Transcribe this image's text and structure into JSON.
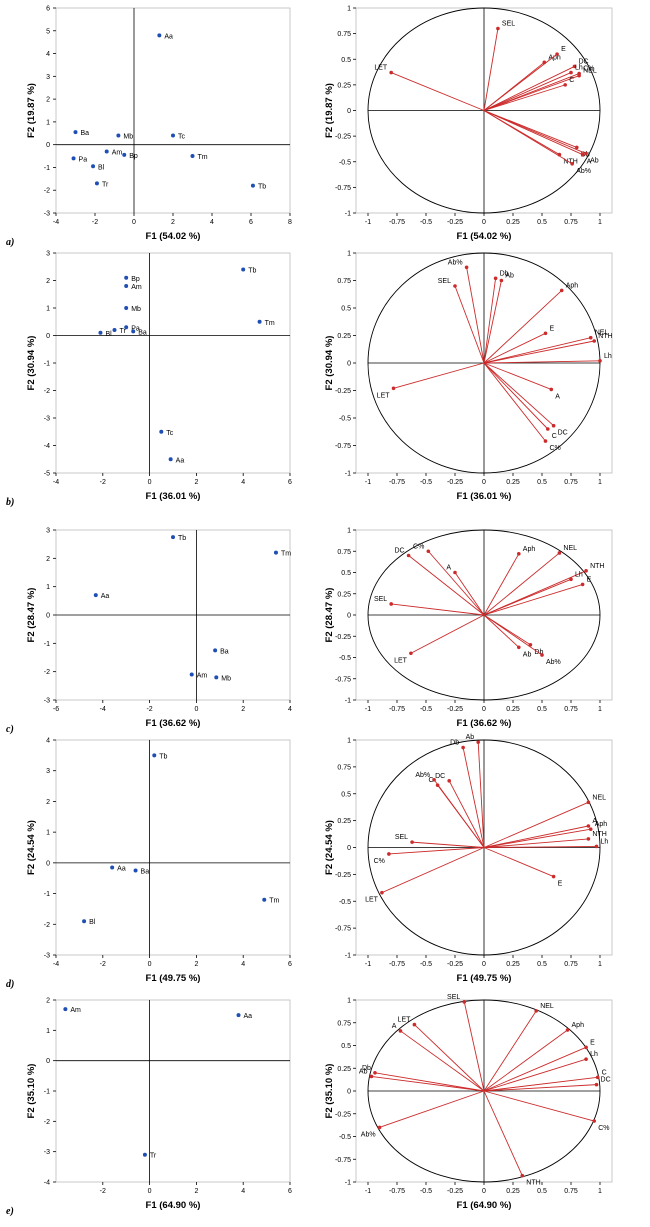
{
  "figure": {
    "rows": [
      {
        "label": "a)",
        "scores": {
          "type": "scatter",
          "title": "",
          "xlabel": "F1 (54.02 %)",
          "ylabel": "F2 (19.87 %)",
          "xlim": [
            -4,
            8
          ],
          "ylim": [
            -3,
            6
          ],
          "xticks": [
            -4,
            -2,
            0,
            2,
            4,
            6,
            8
          ],
          "yticks": [
            -3,
            -2,
            -1,
            0,
            1,
            2,
            3,
            4,
            5,
            6
          ],
          "point_color": "#1f4fb4",
          "points": [
            {
              "label": "Aa",
              "x": 1.3,
              "y": 4.8
            },
            {
              "label": "Ba",
              "x": -3.0,
              "y": 0.55
            },
            {
              "label": "Mb",
              "x": -0.8,
              "y": 0.4
            },
            {
              "label": "Tc",
              "x": 2.0,
              "y": 0.4
            },
            {
              "label": "Am",
              "x": -1.4,
              "y": -0.3
            },
            {
              "label": "Bp",
              "x": -0.5,
              "y": -0.45
            },
            {
              "label": "Pa",
              "x": -3.1,
              "y": -0.6
            },
            {
              "label": "Bl",
              "x": -2.1,
              "y": -0.95
            },
            {
              "label": "Tr",
              "x": -1.9,
              "y": -1.7
            },
            {
              "label": "Tm",
              "x": 3.0,
              "y": -0.5
            },
            {
              "label": "Tb",
              "x": 6.1,
              "y": -1.8
            }
          ]
        },
        "loadings": {
          "type": "scatter",
          "title": "",
          "xlabel": "F1 (54.02 %)",
          "ylabel": "F2 (19.87 %)",
          "xlim": [
            -1,
            1
          ],
          "ylim": [
            -1,
            1
          ],
          "xticks": [
            -1,
            -0.75,
            -0.5,
            -0.25,
            0,
            0.25,
            0.5,
            0.75,
            1
          ],
          "yticks": [
            -1,
            -0.75,
            -0.5,
            -0.25,
            0,
            0.25,
            0.5,
            0.75,
            1
          ],
          "vector_color": "#cc2b2b",
          "vectors": [
            {
              "label": "SEL",
              "x": 0.12,
              "y": 0.8
            },
            {
              "label": "LET",
              "x": -0.8,
              "y": 0.37
            },
            {
              "label": "Aph",
              "x": 0.52,
              "y": 0.47
            },
            {
              "label": "E",
              "x": 0.63,
              "y": 0.55
            },
            {
              "label": "DC",
              "x": 0.78,
              "y": 0.43
            },
            {
              "label": "Lh",
              "x": 0.75,
              "y": 0.37
            },
            {
              "label": "C%",
              "x": 0.82,
              "y": 0.36
            },
            {
              "label": "NEL",
              "x": 0.82,
              "y": 0.34
            },
            {
              "label": "C",
              "x": 0.7,
              "y": 0.25
            },
            {
              "label": "Db",
              "x": 0.8,
              "y": -0.36
            },
            {
              "label": "A",
              "x": 0.85,
              "y": -0.43
            },
            {
              "label": "Ab",
              "x": 0.88,
              "y": -0.42
            },
            {
              "label": "NTH",
              "x": 0.65,
              "y": -0.43
            },
            {
              "label": "Ab%",
              "x": 0.76,
              "y": -0.52
            }
          ]
        }
      },
      {
        "label": "b)",
        "scores": {
          "type": "scatter",
          "title": "",
          "xlabel": "F1 (36.01 %)",
          "ylabel": "F2 (30.94 %)",
          "xlim": [
            -4,
            6
          ],
          "ylim": [
            -5,
            3
          ],
          "xticks": [
            -4,
            -2,
            0,
            2,
            4,
            6
          ],
          "yticks": [
            -5,
            -4,
            -3,
            -2,
            -1,
            0,
            1,
            2,
            3
          ],
          "point_color": "#1f4fb4",
          "points": [
            {
              "label": "Tb",
              "x": 4.0,
              "y": 2.4
            },
            {
              "label": "Bp",
              "x": -1.0,
              "y": 2.1
            },
            {
              "label": "Am",
              "x": -1.0,
              "y": 1.8
            },
            {
              "label": "Mb",
              "x": -1.0,
              "y": 1.0
            },
            {
              "label": "Tm",
              "x": 4.7,
              "y": 0.5
            },
            {
              "label": "Bl",
              "x": -2.1,
              "y": 0.1
            },
            {
              "label": "Pa",
              "x": -1.0,
              "y": 0.3
            },
            {
              "label": "Ba",
              "x": -0.7,
              "y": 0.15
            },
            {
              "label": "Tr",
              "x": -1.5,
              "y": 0.2
            },
            {
              "label": "Tc",
              "x": 0.5,
              "y": -3.5
            },
            {
              "label": "Aa",
              "x": 0.9,
              "y": -4.5
            }
          ]
        },
        "loadings": {
          "type": "scatter",
          "title": "",
          "xlabel": "F1 (36.01 %)",
          "ylabel": "F2 (30.94 %)",
          "xlim": [
            -1,
            1
          ],
          "ylim": [
            -1,
            1
          ],
          "xticks": [
            -1,
            -0.75,
            -0.5,
            -0.25,
            0,
            0.25,
            0.5,
            0.75,
            1
          ],
          "yticks": [
            -1,
            -0.75,
            -0.5,
            -0.25,
            0,
            0.25,
            0.5,
            0.75,
            1
          ],
          "vector_color": "#cc2b2b",
          "vectors": [
            {
              "label": "Ab%",
              "x": -0.15,
              "y": 0.87
            },
            {
              "label": "Db",
              "x": 0.1,
              "y": 0.77
            },
            {
              "label": "Ab",
              "x": 0.15,
              "y": 0.75
            },
            {
              "label": "SEL",
              "x": -0.25,
              "y": 0.7
            },
            {
              "label": "Aph",
              "x": 0.67,
              "y": 0.66
            },
            {
              "label": "NEL",
              "x": 0.92,
              "y": 0.23
            },
            {
              "label": "NTH",
              "x": 0.95,
              "y": 0.2
            },
            {
              "label": "E",
              "x": 0.53,
              "y": 0.27
            },
            {
              "label": "Lh",
              "x": 1.0,
              "y": 0.02
            },
            {
              "label": "LET",
              "x": -0.78,
              "y": -0.23
            },
            {
              "label": "A",
              "x": 0.58,
              "y": -0.24
            },
            {
              "label": "DC",
              "x": 0.6,
              "y": -0.57
            },
            {
              "label": "C",
              "x": 0.55,
              "y": -0.6
            },
            {
              "label": "C%",
              "x": 0.53,
              "y": -0.71
            }
          ]
        }
      },
      {
        "label": "c)",
        "scores": {
          "type": "scatter",
          "title": "",
          "xlabel": "F1 (36.62 %)",
          "ylabel": "F2 (28.47 %)",
          "xlim": [
            -6,
            4
          ],
          "ylim": [
            -3,
            3
          ],
          "xticks": [
            -6,
            -4,
            -2,
            0,
            2,
            4
          ],
          "yticks": [
            -3,
            -2,
            -1,
            0,
            1,
            2,
            3
          ],
          "point_color": "#1f4fb4",
          "points": [
            {
              "label": "Tb",
              "x": -1.0,
              "y": 2.75
            },
            {
              "label": "Tm",
              "x": 3.4,
              "y": 2.2
            },
            {
              "label": "Aa",
              "x": -4.3,
              "y": 0.7
            },
            {
              "label": "Ba",
              "x": 0.8,
              "y": -1.25
            },
            {
              "label": "Am",
              "x": -0.2,
              "y": -2.1
            },
            {
              "label": "Mb",
              "x": 0.85,
              "y": -2.2
            }
          ]
        },
        "loadings": {
          "type": "scatter",
          "title": "",
          "xlabel": "F1 (36.62 %)",
          "ylabel": "F2 (28.47 %)",
          "xlim": [
            -1,
            1
          ],
          "ylim": [
            -1,
            1
          ],
          "xticks": [
            -1,
            -0.75,
            -0.5,
            -0.25,
            0,
            0.25,
            0.5,
            0.75,
            1
          ],
          "yticks": [
            -1,
            -0.75,
            -0.5,
            -0.25,
            0,
            0.25,
            0.5,
            0.75,
            1
          ],
          "vector_color": "#cc2b2b",
          "vectors": [
            {
              "label": "DC",
              "x": -0.65,
              "y": 0.7
            },
            {
              "label": "C%",
              "x": -0.48,
              "y": 0.75
            },
            {
              "label": "A",
              "x": -0.25,
              "y": 0.5
            },
            {
              "label": "Aph",
              "x": 0.3,
              "y": 0.72
            },
            {
              "label": "NEL",
              "x": 0.65,
              "y": 0.73
            },
            {
              "label": "NTH",
              "x": 0.88,
              "y": 0.52
            },
            {
              "label": "Lh",
              "x": 0.75,
              "y": 0.42
            },
            {
              "label": "E",
              "x": 0.85,
              "y": 0.36
            },
            {
              "label": "SEL",
              "x": -0.8,
              "y": 0.13
            },
            {
              "label": "LET",
              "x": -0.63,
              "y": -0.45
            },
            {
              "label": "Ab",
              "x": 0.3,
              "y": -0.38
            },
            {
              "label": "Db",
              "x": 0.4,
              "y": -0.35
            },
            {
              "label": "Ab%",
              "x": 0.5,
              "y": -0.47
            }
          ]
        }
      },
      {
        "label": "d)",
        "scores": {
          "type": "scatter",
          "title": "",
          "xlabel": "F1 (49.75 %)",
          "ylabel": "F2 (24.54 %)",
          "xlim": [
            -4,
            6
          ],
          "ylim": [
            -3,
            4
          ],
          "xticks": [
            -4,
            -2,
            0,
            2,
            4,
            6
          ],
          "yticks": [
            -3,
            -2,
            -1,
            0,
            1,
            2,
            3,
            4
          ],
          "point_color": "#1f4fb4",
          "points": [
            {
              "label": "Tb",
              "x": 0.2,
              "y": 3.5
            },
            {
              "label": "Aa",
              "x": -1.6,
              "y": -0.15
            },
            {
              "label": "Ba",
              "x": -0.6,
              "y": -0.25
            },
            {
              "label": "Tm",
              "x": 4.9,
              "y": -1.2
            },
            {
              "label": "Bl",
              "x": -2.8,
              "y": -1.9
            }
          ]
        },
        "loadings": {
          "type": "scatter",
          "title": "",
          "xlabel": "F1 (49.75 %)",
          "ylabel": "F2 (24.54 %)",
          "xlim": [
            -1,
            1
          ],
          "ylim": [
            -1,
            1
          ],
          "xticks": [
            -1,
            -0.75,
            -0.5,
            -0.25,
            0,
            0.25,
            0.5,
            0.75,
            1
          ],
          "yticks": [
            -1,
            -0.75,
            -0.5,
            -0.25,
            0,
            0.25,
            0.5,
            0.75,
            1
          ],
          "vector_color": "#cc2b2b",
          "vectors": [
            {
              "label": "Ab",
              "x": -0.05,
              "y": 0.98
            },
            {
              "label": "Db",
              "x": -0.18,
              "y": 0.93
            },
            {
              "label": "Ab%",
              "x": -0.43,
              "y": 0.63
            },
            {
              "label": "DC",
              "x": -0.3,
              "y": 0.62
            },
            {
              "label": "C",
              "x": -0.4,
              "y": 0.58
            },
            {
              "label": "NEL",
              "x": 0.9,
              "y": 0.42
            },
            {
              "label": "A",
              "x": 0.9,
              "y": 0.2
            },
            {
              "label": "Aph",
              "x": 0.92,
              "y": 0.17
            },
            {
              "label": "NTH",
              "x": 0.9,
              "y": 0.08
            },
            {
              "label": "Lh",
              "x": 0.97,
              "y": 0.01
            },
            {
              "label": "SEL",
              "x": -0.62,
              "y": 0.05
            },
            {
              "label": "C%",
              "x": -0.82,
              "y": -0.06
            },
            {
              "label": "LET",
              "x": -0.88,
              "y": -0.42
            },
            {
              "label": "E",
              "x": 0.6,
              "y": -0.27
            }
          ]
        }
      },
      {
        "label": "e)",
        "scores": {
          "type": "scatter",
          "title": "",
          "xlabel": "F1 (64.90 %)",
          "ylabel": "F2 (35.10 %)",
          "xlim": [
            -4,
            6
          ],
          "ylim": [
            -4,
            2
          ],
          "xticks": [
            -2,
            0,
            2,
            4,
            6
          ],
          "yticks": [
            -4,
            -3,
            -2,
            -1,
            0,
            1,
            2
          ],
          "point_color": "#1f4fb4",
          "points": [
            {
              "label": "Am",
              "x": -3.6,
              "y": 1.7
            },
            {
              "label": "Aa",
              "x": 3.8,
              "y": 1.5
            },
            {
              "label": "Tr",
              "x": -0.2,
              "y": -3.1
            }
          ]
        },
        "loadings": {
          "type": "scatter",
          "title": "",
          "xlabel": "F1 (64.90 %)",
          "ylabel": "F2 (35.10 %)",
          "xlim": [
            -1,
            1
          ],
          "ylim": [
            -1,
            1
          ],
          "xticks": [
            -1,
            -0.75,
            -0.5,
            -0.25,
            0,
            0.25,
            0.5,
            0.75,
            1
          ],
          "yticks": [
            -1,
            -0.75,
            -0.5,
            -0.25,
            0,
            0.25,
            0.5,
            0.75,
            1
          ],
          "vector_color": "#cc2b2b",
          "vectors": [
            {
              "label": "SEL",
              "x": -0.17,
              "y": 0.98
            },
            {
              "label": "NEL",
              "x": 0.45,
              "y": 0.88
            },
            {
              "label": "LET",
              "x": -0.6,
              "y": 0.73
            },
            {
              "label": "A",
              "x": -0.72,
              "y": 0.66
            },
            {
              "label": "Aph",
              "x": 0.72,
              "y": 0.67
            },
            {
              "label": "E",
              "x": 0.88,
              "y": 0.48
            },
            {
              "label": "Lh",
              "x": 0.88,
              "y": 0.35
            },
            {
              "label": "C",
              "x": 0.98,
              "y": 0.15
            },
            {
              "label": "DC",
              "x": 0.97,
              "y": 0.07
            },
            {
              "label": "Db",
              "x": -0.94,
              "y": 0.2
            },
            {
              "label": "Ab",
              "x": -0.97,
              "y": 0.16
            },
            {
              "label": "Ab%",
              "x": -0.9,
              "y": -0.4
            },
            {
              "label": "C%",
              "x": 0.95,
              "y": -0.33
            },
            {
              "label": "NTH",
              "x": 0.33,
              "y": -0.93
            }
          ]
        }
      }
    ]
  }
}
